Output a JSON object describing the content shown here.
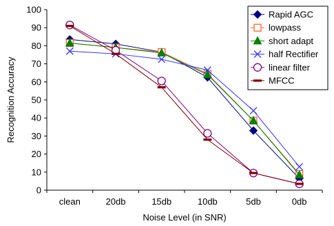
{
  "chart_data": {
    "type": "line",
    "title": "",
    "xlabel": "Noise Level (in SNR)",
    "ylabel": "Recognition Accuracy",
    "categories": [
      "clean",
      "20db",
      "15db",
      "10db",
      "5db",
      "0db"
    ],
    "ylim": [
      0,
      100
    ],
    "yticks": [
      0,
      10,
      20,
      30,
      40,
      50,
      60,
      70,
      80,
      90,
      100
    ],
    "grid": false,
    "legend_position": "top-right",
    "series": [
      {
        "name": "Rapid AGC",
        "values": [
          83.5,
          81,
          76.5,
          62.5,
          33,
          6.5
        ],
        "color": "#000080",
        "marker": "diamond"
      },
      {
        "name": "lowpass",
        "values": [
          81.5,
          79,
          76.5,
          64.5,
          38.5,
          9
        ],
        "color": "#FF6633",
        "marker": "square-open"
      },
      {
        "name": "short adapt",
        "values": [
          81.5,
          79,
          76,
          64,
          38.5,
          8.5
        ],
        "color": "#008000",
        "marker": "triangle"
      },
      {
        "name": "half Rectifier",
        "values": [
          77,
          75.5,
          72.5,
          66.5,
          44,
          13
        ],
        "color": "#3333FF",
        "marker": "x"
      },
      {
        "name": "linear filter",
        "values": [
          91.5,
          77.5,
          60.5,
          31.5,
          9.5,
          3.5
        ],
        "color": "#800080",
        "marker": "circle-open"
      },
      {
        "name": "MFCC",
        "values": [
          91,
          75.5,
          57,
          28,
          9.5,
          3.5
        ],
        "color": "#800000",
        "marker": "dash"
      }
    ]
  }
}
